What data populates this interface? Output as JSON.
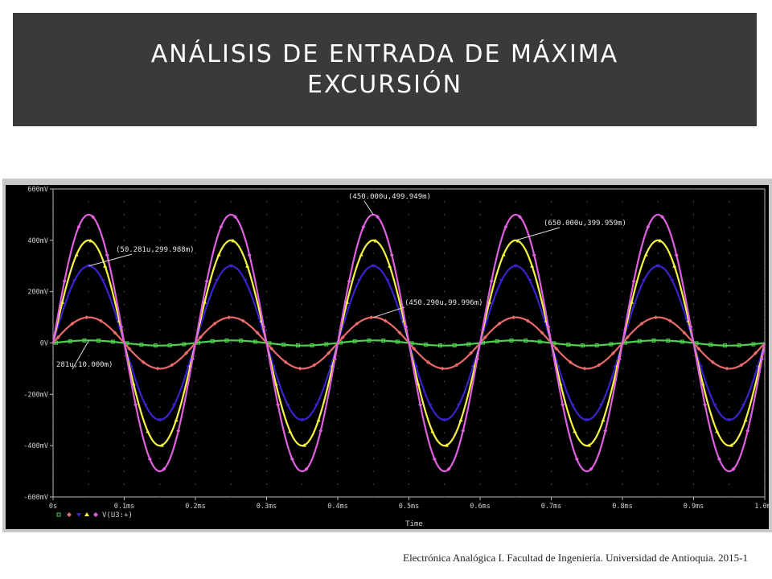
{
  "header": {
    "title": "ANÁLISIS DE ENTRADA DE MÁXIMA EXCURSIÓN"
  },
  "footer": {
    "text": "Electrónica Analógica I.  Facultad de Ingeniería. Universidad de Antioquia.  2015-1"
  },
  "chart_data": {
    "type": "line",
    "xlabel": "Time",
    "ylabel": "",
    "xlim": [
      0,
      1.0
    ],
    "ylim": [
      -600,
      600
    ],
    "x_unit": "ms",
    "y_unit": "mV",
    "frequency_khz": 5,
    "x_ticks": [
      "0s",
      "0.1ms",
      "0.2ms",
      "0.3ms",
      "0.4ms",
      "0.5ms",
      "0.6ms",
      "0.7ms",
      "0.8ms",
      "0.9ms",
      "1.0ms"
    ],
    "y_ticks": [
      {
        "value": 600,
        "label": "600mV"
      },
      {
        "value": 400,
        "label": "400mV"
      },
      {
        "value": 200,
        "label": "200mV"
      },
      {
        "value": 0,
        "label": "0V"
      },
      {
        "value": -200,
        "label": "-200mV"
      },
      {
        "value": -400,
        "label": "-400mV"
      },
      {
        "value": -600,
        "label": "-600mV"
      }
    ],
    "series": [
      {
        "amplitude_mv": 10,
        "color": "#50d050",
        "marker": "square"
      },
      {
        "amplitude_mv": 100,
        "color": "#e86a6a",
        "marker": "diamond"
      },
      {
        "amplitude_mv": 300,
        "color": "#3a22cc",
        "marker": "inverted-triangle"
      },
      {
        "amplitude_mv": 400,
        "color": "#f6f640",
        "marker": "triangle"
      },
      {
        "name": "V(U3:+)",
        "amplitude_mv": 500,
        "color": "#e060e0",
        "marker": "diamond"
      }
    ],
    "annotations": [
      {
        "text": "(450.000u,499.949m)",
        "x": 0.45,
        "y": 499.949
      },
      {
        "text": "(650.000u,399.959m)",
        "x": 0.65,
        "y": 399.959
      },
      {
        "text": "(50.281u,299.988m)",
        "x": 0.05028,
        "y": 299.988
      },
      {
        "text": "(450.290u,99.996m)",
        "x": 0.45029,
        "y": 99.996
      },
      {
        "text": "281u,10.000m)",
        "x": 0.05028,
        "y": 10.0
      }
    ],
    "background": "#000000",
    "grid": true,
    "legend_text": "V(U3:+)"
  }
}
